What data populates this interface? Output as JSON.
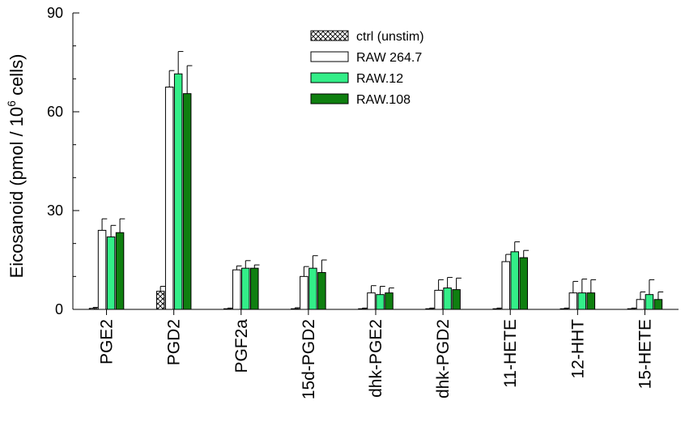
{
  "chart_data": {
    "type": "bar",
    "title": "",
    "xlabel": "",
    "ylabel": "Eicosanoid (pmol / 10",
    "ylabel_sup": "6",
    "ylabel_suffix": " cells)",
    "ylim": [
      0,
      90
    ],
    "yticks": [
      0,
      30,
      60,
      90
    ],
    "grid": false,
    "legend_position": "top-center",
    "categories": [
      "PGE2",
      "PGD2",
      "PGF2a",
      "15d-PGD2",
      "dhk-PGE2",
      "dhk-PGD2",
      "11-HETE",
      "12-HHT",
      "15-HETE"
    ],
    "series": [
      {
        "name": "ctrl (unstim)",
        "fill": "hatch",
        "color": "#ffffff",
        "values": [
          0.3,
          5.5,
          0.2,
          0.2,
          0.2,
          0.2,
          0.2,
          0.2,
          0.2
        ],
        "errors": [
          0.3,
          1.5,
          0.2,
          0.3,
          0.2,
          0.2,
          0.2,
          0.2,
          0.2
        ]
      },
      {
        "name": "RAW 264.7",
        "fill": "solid",
        "color": "#ffffff",
        "values": [
          24,
          67.5,
          12,
          10,
          5,
          5.8,
          14.5,
          5,
          3
        ],
        "errors": [
          3.5,
          5,
          1.2,
          3,
          2.2,
          3.2,
          2.2,
          3.5,
          2.3
        ]
      },
      {
        "name": "RAW.12",
        "fill": "solid",
        "color": "#33ee88",
        "values": [
          22,
          71.5,
          12.5,
          12.5,
          4.5,
          6.5,
          17.5,
          5,
          4.5
        ],
        "errors": [
          3.5,
          6.8,
          2.3,
          3.8,
          2.5,
          3.2,
          3,
          4.2,
          4.5
        ]
      },
      {
        "name": "RAW.108",
        "fill": "solid",
        "color": "#0f7f10",
        "values": [
          23.3,
          65.5,
          12.5,
          11.2,
          5,
          6,
          15.7,
          5,
          3
        ],
        "errors": [
          4.2,
          8.5,
          1,
          3.8,
          1.5,
          3.5,
          2.2,
          4,
          2.3
        ]
      }
    ]
  }
}
